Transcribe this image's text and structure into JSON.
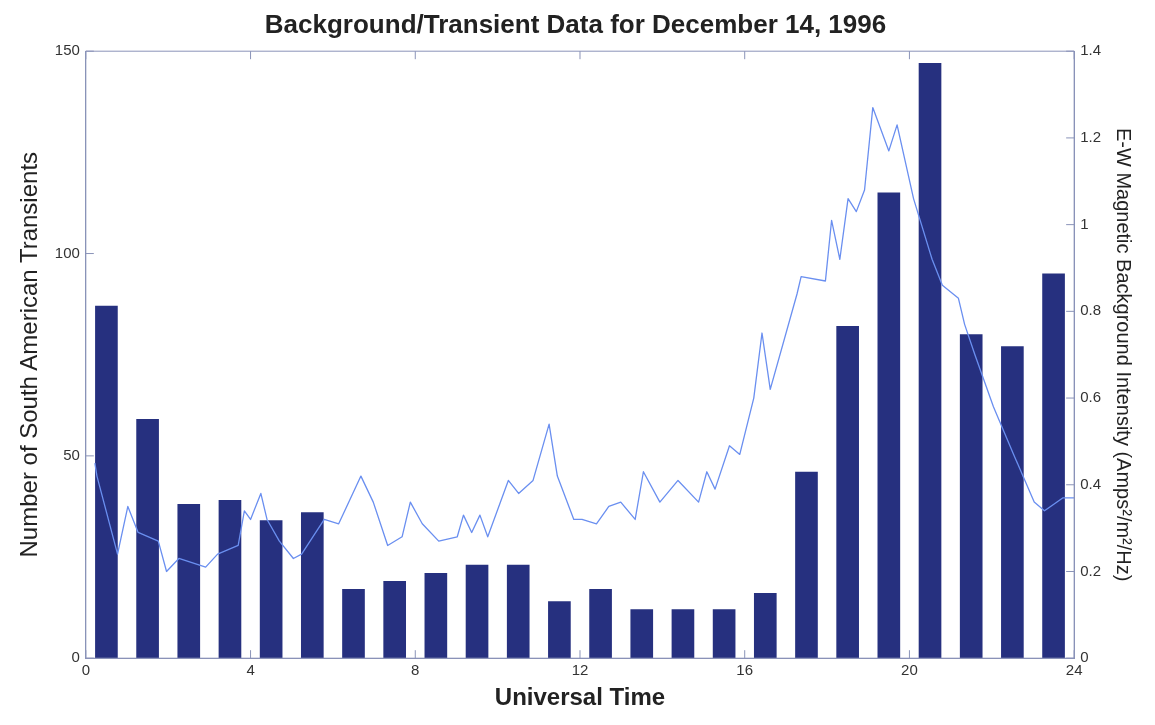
{
  "chart_data": {
    "type": "bar",
    "title": "Background/Transient Data for December 14, 1996",
    "xlabel": "Universal Time",
    "ylabel": "Number of South American Transients",
    "y2label": "E-W Magnetic Background Intensity (Amps²/m²/Hz)",
    "xlim": [
      0,
      24
    ],
    "xticks": [
      0,
      4,
      8,
      12,
      16,
      20,
      24
    ],
    "ylim": [
      0,
      150
    ],
    "yticks": [
      0,
      50,
      100,
      150
    ],
    "y2lim": [
      0,
      1.4
    ],
    "y2ticks": [
      0,
      0.2,
      0.4,
      0.6,
      0.8,
      1,
      1.2,
      1.4
    ],
    "grid": false,
    "legend": false,
    "series": [
      {
        "color": "#26307f",
        "x": [
          0.5,
          1.5,
          2.5,
          3.5,
          4.5,
          5.5,
          6.5,
          7.5,
          8.5,
          9.5,
          10.5,
          11.5,
          12.5,
          13.5,
          14.5,
          15.5,
          16.5,
          17.5,
          18.5,
          19.5,
          20.5,
          21.5,
          22.5,
          23.5
        ],
        "values": [
          87,
          59,
          38,
          39,
          34,
          36,
          17,
          19,
          21,
          23,
          23,
          14,
          17,
          12,
          12,
          12,
          16,
          46,
          82,
          115,
          147,
          80,
          77,
          95
        ]
      },
      {
        "type": "line",
        "axis": "y2",
        "color": "#6a8ff0",
        "x": [
          0.22,
          0.27,
          0.77,
          1.02,
          1.27,
          1.76,
          1.96,
          2.26,
          2.91,
          3.2,
          3.7,
          3.85,
          4.0,
          4.25,
          4.4,
          4.7,
          5.04,
          5.24,
          5.79,
          6.14,
          6.68,
          6.98,
          7.33,
          7.68,
          7.88,
          8.17,
          8.57,
          9.02,
          9.17,
          9.37,
          9.57,
          9.76,
          10.26,
          10.51,
          10.86,
          11.25,
          11.45,
          11.85,
          12.05,
          12.4,
          12.7,
          12.99,
          13.34,
          13.54,
          13.94,
          14.38,
          14.88,
          15.08,
          15.28,
          15.63,
          15.88,
          16.22,
          16.42,
          16.62,
          17.27,
          17.37,
          17.96,
          18.11,
          18.31,
          18.51,
          18.71,
          18.91,
          19.11,
          19.5,
          19.7,
          20.1,
          20.55,
          20.8,
          21.19,
          21.34,
          21.59,
          22.04,
          22.53,
          23.03,
          23.28,
          23.73,
          24
        ],
        "values": [
          0.45,
          0.42,
          0.24,
          0.35,
          0.29,
          0.27,
          0.2,
          0.23,
          0.21,
          0.24,
          0.26,
          0.34,
          0.32,
          0.38,
          0.32,
          0.27,
          0.23,
          0.24,
          0.32,
          0.31,
          0.42,
          0.36,
          0.26,
          0.28,
          0.36,
          0.31,
          0.27,
          0.28,
          0.33,
          0.29,
          0.33,
          0.28,
          0.41,
          0.38,
          0.41,
          0.54,
          0.42,
          0.32,
          0.32,
          0.31,
          0.35,
          0.36,
          0.32,
          0.43,
          0.36,
          0.41,
          0.36,
          0.43,
          0.39,
          0.49,
          0.47,
          0.6,
          0.75,
          0.62,
          0.84,
          0.88,
          0.87,
          1.01,
          0.92,
          1.06,
          1.03,
          1.08,
          1.27,
          1.17,
          1.23,
          1.06,
          0.92,
          0.86,
          0.83,
          0.77,
          0.7,
          0.58,
          0.47,
          0.36,
          0.34,
          0.37,
          0.37
        ]
      }
    ]
  }
}
